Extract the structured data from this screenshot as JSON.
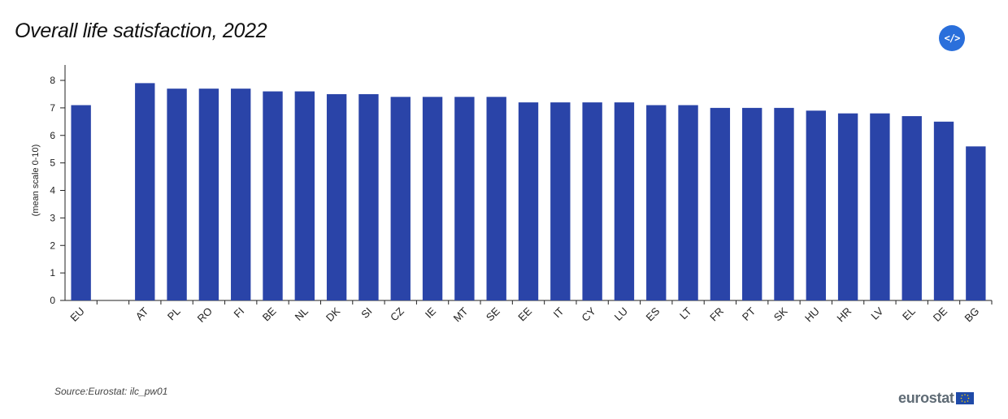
{
  "title": "Overall life satisfaction, 2022",
  "source": "Source:Eurostat: ilc_pw01",
  "logo": {
    "text": "eurostat"
  },
  "embed_button": {
    "label": "</>"
  },
  "colors": {
    "bar": "#2a44a8",
    "axis": "#222222",
    "embed": "#2a6fdb",
    "logo_text": "#5f6b75"
  },
  "chart_data": {
    "type": "bar",
    "categories": [
      "EU",
      "",
      "AT",
      "PL",
      "RO",
      "FI",
      "BE",
      "NL",
      "DK",
      "SI",
      "CZ",
      "IE",
      "MT",
      "SE",
      "EE",
      "IT",
      "CY",
      "LU",
      "ES",
      "LT",
      "FR",
      "PT",
      "SK",
      "HU",
      "HR",
      "LV",
      "EL",
      "DE",
      "BG"
    ],
    "values": [
      7.1,
      null,
      7.9,
      7.7,
      7.7,
      7.7,
      7.6,
      7.6,
      7.5,
      7.5,
      7.4,
      7.4,
      7.4,
      7.4,
      7.2,
      7.2,
      7.2,
      7.2,
      7.1,
      7.1,
      7.0,
      7.0,
      7.0,
      6.9,
      6.8,
      6.8,
      6.7,
      6.5,
      5.6
    ],
    "title": "Overall life satisfaction, 2022",
    "xlabel": "",
    "ylabel": "(mean scale 0-10)",
    "ylim": [
      0,
      8
    ],
    "yticks": [
      0,
      1,
      2,
      3,
      4,
      5,
      6,
      7,
      8
    ],
    "grid": false,
    "legend": "none"
  }
}
